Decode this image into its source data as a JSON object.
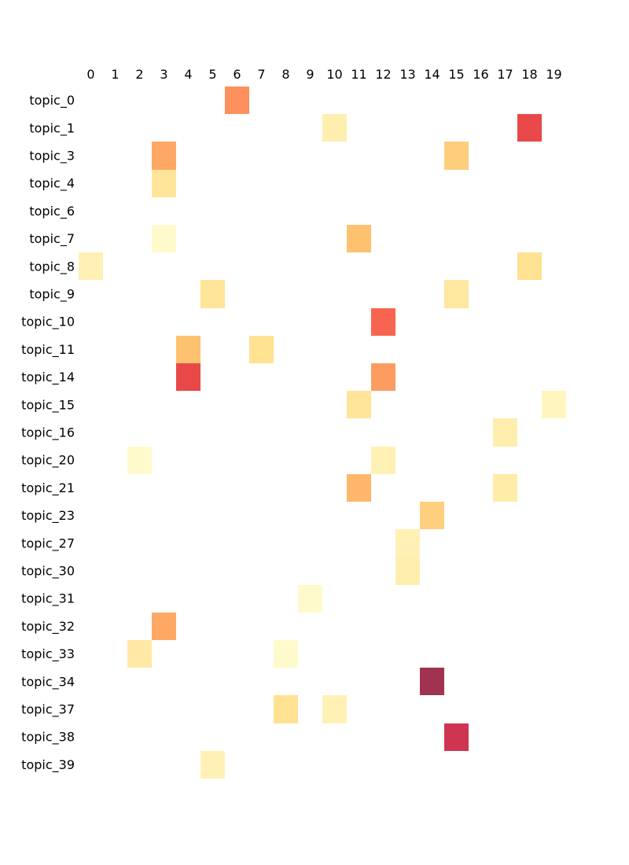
{
  "chart_data": {
    "type": "heatmap",
    "title": "",
    "xlabel": "",
    "ylabel": "",
    "x_tick_labels": [
      "0",
      "1",
      "2",
      "3",
      "4",
      "5",
      "6",
      "7",
      "8",
      "9",
      "10",
      "11",
      "12",
      "13",
      "14",
      "15",
      "16",
      "17",
      "18",
      "19"
    ],
    "y_tick_labels": [
      "topic_0",
      "topic_1",
      "topic_3",
      "topic_4",
      "topic_6",
      "topic_7",
      "topic_8",
      "topic_9",
      "topic_10",
      "topic_11",
      "topic_14",
      "topic_15",
      "topic_16",
      "topic_20",
      "topic_21",
      "topic_23",
      "topic_27",
      "topic_30",
      "topic_31",
      "topic_32",
      "topic_33",
      "topic_34",
      "topic_37",
      "topic_38",
      "topic_39"
    ],
    "x_axis_position": "top",
    "grid": false,
    "colorbar": false,
    "colormap": [
      "#ffffcc",
      "#ffeda0",
      "#fed976",
      "#feb24c",
      "#fd8d3c",
      "#fc4e2a",
      "#e31a1c",
      "#bd0026",
      "#800026"
    ],
    "cell_opacity": 0.8,
    "cells": [
      {
        "row": "topic_0",
        "col": "6",
        "value": 0.55
      },
      {
        "row": "topic_1",
        "col": "10",
        "value": 0.14
      },
      {
        "row": "topic_1",
        "col": "18",
        "value": 0.75
      },
      {
        "row": "topic_3",
        "col": "3",
        "value": 0.48
      },
      {
        "row": "topic_3",
        "col": "15",
        "value": 0.33
      },
      {
        "row": "topic_4",
        "col": "3",
        "value": 0.22
      },
      {
        "row": "topic_7",
        "col": "3",
        "value": 0.04
      },
      {
        "row": "topic_7",
        "col": "11",
        "value": 0.38
      },
      {
        "row": "topic_8",
        "col": "0",
        "value": 0.12
      },
      {
        "row": "topic_8",
        "col": "18",
        "value": 0.25
      },
      {
        "row": "topic_9",
        "col": "5",
        "value": 0.22
      },
      {
        "row": "topic_9",
        "col": "15",
        "value": 0.2
      },
      {
        "row": "topic_10",
        "col": "12",
        "value": 0.66
      },
      {
        "row": "topic_11",
        "col": "4",
        "value": 0.38
      },
      {
        "row": "topic_11",
        "col": "7",
        "value": 0.25
      },
      {
        "row": "topic_14",
        "col": "4",
        "value": 0.75
      },
      {
        "row": "topic_14",
        "col": "12",
        "value": 0.52
      },
      {
        "row": "topic_15",
        "col": "11",
        "value": 0.22
      },
      {
        "row": "topic_15",
        "col": "19",
        "value": 0.09
      },
      {
        "row": "topic_16",
        "col": "17",
        "value": 0.15
      },
      {
        "row": "topic_20",
        "col": "2",
        "value": 0.04
      },
      {
        "row": "topic_20",
        "col": "12",
        "value": 0.12
      },
      {
        "row": "topic_21",
        "col": "11",
        "value": 0.42
      },
      {
        "row": "topic_21",
        "col": "17",
        "value": 0.16
      },
      {
        "row": "topic_23",
        "col": "14",
        "value": 0.32
      },
      {
        "row": "topic_27",
        "col": "13",
        "value": 0.12
      },
      {
        "row": "topic_30",
        "col": "13",
        "value": 0.14
      },
      {
        "row": "topic_31",
        "col": "9",
        "value": 0.04
      },
      {
        "row": "topic_32",
        "col": "3",
        "value": 0.48
      },
      {
        "row": "topic_33",
        "col": "2",
        "value": 0.18
      },
      {
        "row": "topic_33",
        "col": "8",
        "value": 0.04
      },
      {
        "row": "topic_34",
        "col": "14",
        "value": 0.98
      },
      {
        "row": "topic_37",
        "col": "8",
        "value": 0.25
      },
      {
        "row": "topic_37",
        "col": "10",
        "value": 0.12
      },
      {
        "row": "topic_38",
        "col": "15",
        "value": 0.86
      },
      {
        "row": "topic_39",
        "col": "5",
        "value": 0.12
      }
    ]
  }
}
